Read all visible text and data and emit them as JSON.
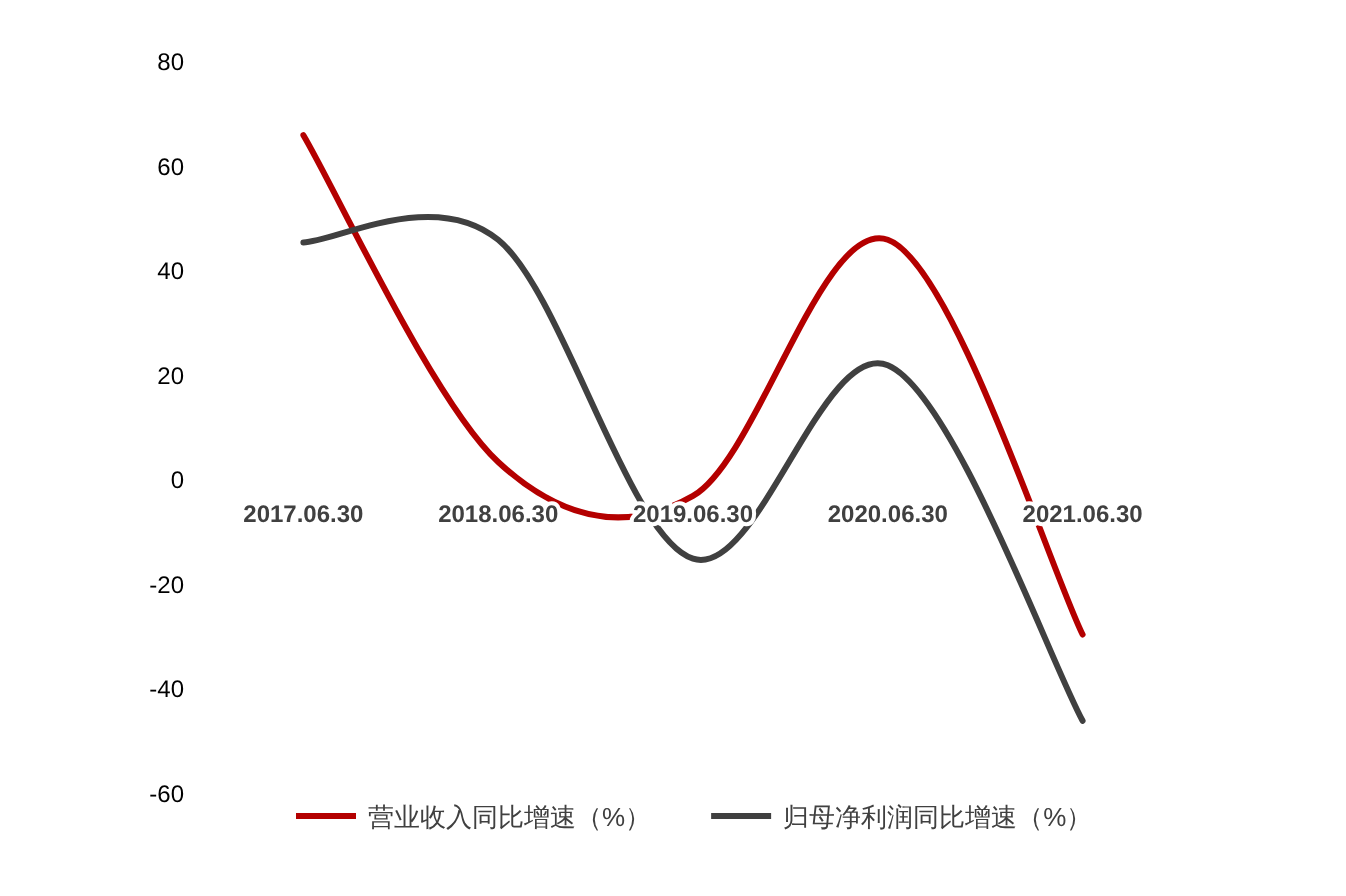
{
  "chart_data": {
    "type": "line",
    "categories": [
      "2017.06.30",
      "2018.06.30",
      "2019.06.30",
      "2020.06.30",
      "2021.06.30"
    ],
    "series": [
      {
        "name": "营业收入同比增速（%）",
        "color": "#b40000",
        "values": [
          66,
          3.5,
          -3,
          46,
          -29.5
        ]
      },
      {
        "name": "归母净利润同比增速（%）",
        "color": "#404040",
        "values": [
          45.5,
          46,
          -15,
          22,
          -46
        ]
      }
    ],
    "ylim": [
      -60,
      80
    ],
    "yticks": [
      -60,
      -40,
      -20,
      0,
      20,
      40,
      60,
      80
    ],
    "grid": false,
    "legend": "bottom",
    "line_style": "solid"
  }
}
